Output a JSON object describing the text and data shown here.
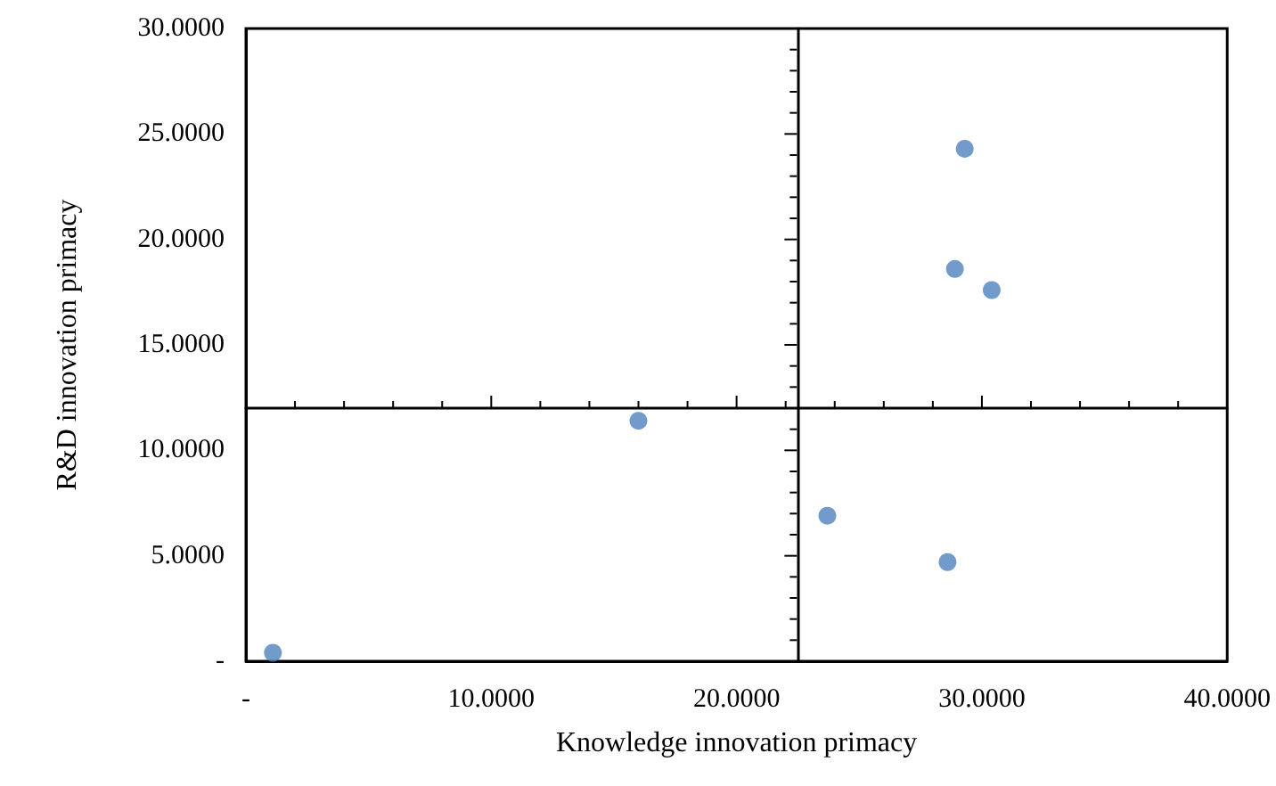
{
  "chart_data": {
    "type": "scatter",
    "xlabel": "Knowledge innovation primacy",
    "ylabel": "R&D innovation primacy",
    "x": [
      1.1,
      16.0,
      23.7,
      28.6,
      28.9,
      29.3,
      30.4
    ],
    "series": [
      {
        "color": "#4f81bd",
        "values": [
          0.4,
          11.4,
          6.9,
          4.7,
          18.6,
          24.3,
          17.6
        ]
      }
    ],
    "xlim": [
      0,
      40
    ],
    "xticks": [
      {
        "value": 0,
        "label": "-"
      },
      {
        "value": 10,
        "label": "10.0000"
      },
      {
        "value": 20,
        "label": "20.0000"
      },
      {
        "value": 30,
        "label": "30.0000"
      },
      {
        "value": 40,
        "label": "40.0000"
      }
    ],
    "ylim": [
      0,
      30
    ],
    "yticks": [
      {
        "value": 0,
        "label": "-"
      },
      {
        "value": 5,
        "label": "5.0000"
      },
      {
        "value": 10,
        "label": "10.0000"
      },
      {
        "value": 15,
        "label": "15.0000"
      },
      {
        "value": 20,
        "label": "20.0000"
      },
      {
        "value": 25,
        "label": "25.0000"
      },
      {
        "value": 30,
        "label": "30.0000"
      }
    ],
    "ref_lines": [
      {
        "axis": "x",
        "value": 22.46
      },
      {
        "axis": "y",
        "value": 12
      }
    ],
    "marker": "circle",
    "grid": false
  }
}
